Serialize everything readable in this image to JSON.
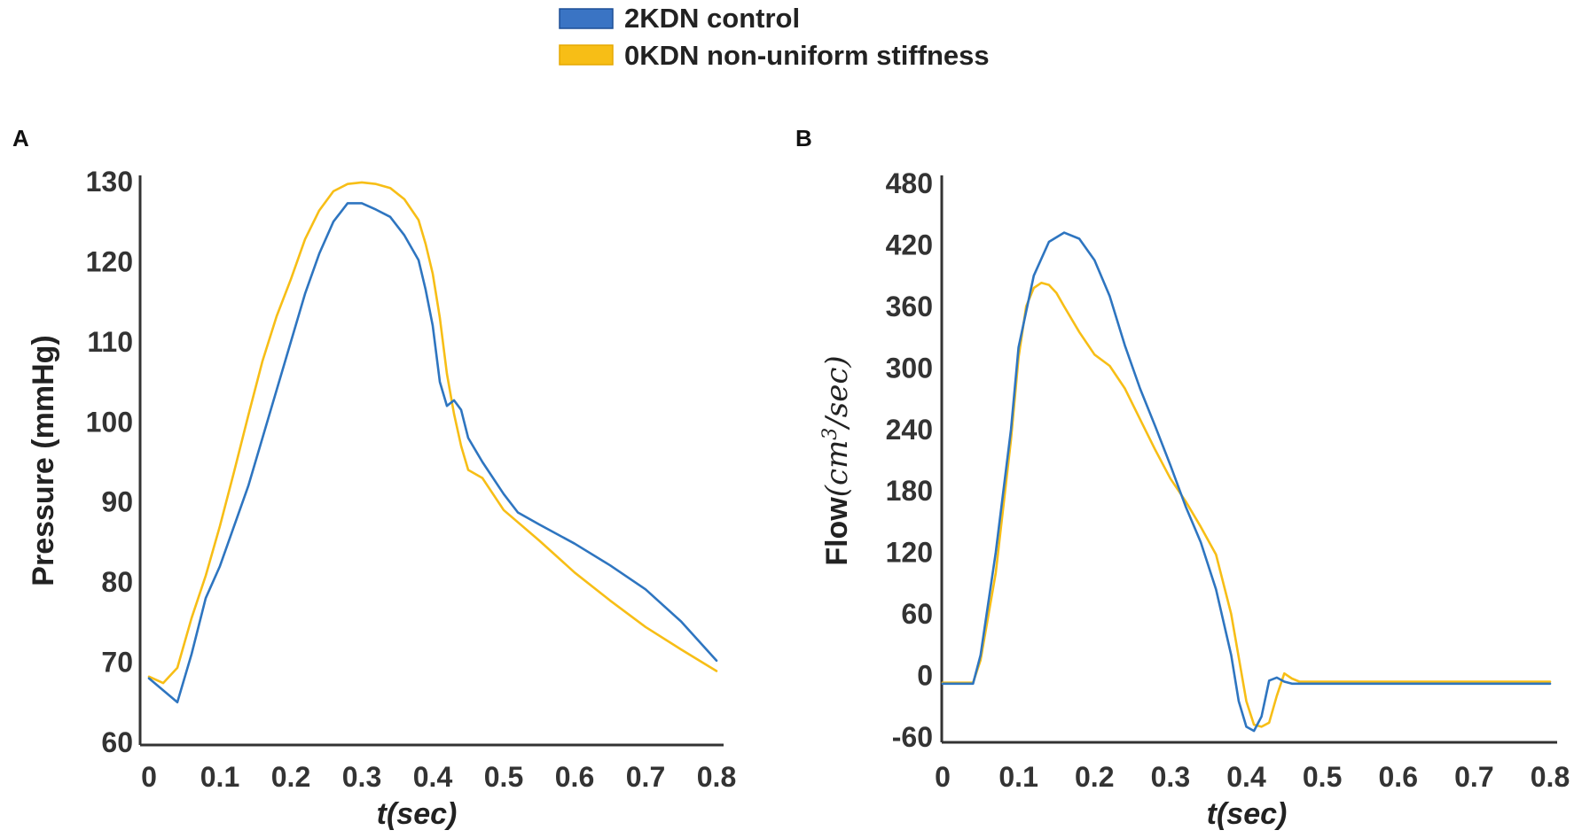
{
  "legend": {
    "items": [
      {
        "label": "2KDN control",
        "color": "#2e75c0"
      },
      {
        "label": "0KDN non-uniform stiffness",
        "color": "#f7be16"
      }
    ]
  },
  "chart_data": [
    {
      "panel": "A",
      "type": "line",
      "xlabel": "t(sec)",
      "ylabel": "Pressure (mmHg)",
      "xlim": [
        0,
        0.8
      ],
      "ylim": [
        60,
        130
      ],
      "xticks": [
        "0",
        "0.1",
        "0.2",
        "0.3",
        "0.4",
        "0.5",
        "0.6",
        "0.7",
        "0.8"
      ],
      "xtick_values": [
        0,
        0.1,
        0.2,
        0.3,
        0.4,
        0.5,
        0.6,
        0.7,
        0.8
      ],
      "yticks": [
        "60",
        "70",
        "80",
        "90",
        "100",
        "110",
        "120",
        "130"
      ],
      "ytick_values": [
        60,
        70,
        80,
        90,
        100,
        110,
        120,
        130
      ],
      "series": [
        {
          "name": "2KDN control",
          "color": "#2e75c0",
          "points": [
            [
              0,
              68
            ],
            [
              0.04,
              65
            ],
            [
              0.06,
              71
            ],
            [
              0.08,
              78
            ],
            [
              0.1,
              82
            ],
            [
              0.12,
              87
            ],
            [
              0.14,
              92
            ],
            [
              0.16,
              98
            ],
            [
              0.18,
              104
            ],
            [
              0.2,
              110
            ],
            [
              0.22,
              116
            ],
            [
              0.24,
              121
            ],
            [
              0.26,
              125
            ],
            [
              0.28,
              127.3
            ],
            [
              0.3,
              127.3
            ],
            [
              0.32,
              126.5
            ],
            [
              0.34,
              125.6
            ],
            [
              0.36,
              123.3
            ],
            [
              0.38,
              120.2
            ],
            [
              0.39,
              116.5
            ],
            [
              0.4,
              112
            ],
            [
              0.41,
              105
            ],
            [
              0.42,
              102
            ],
            [
              0.43,
              102.7
            ],
            [
              0.44,
              101.5
            ],
            [
              0.45,
              98
            ],
            [
              0.47,
              95
            ],
            [
              0.5,
              91
            ],
            [
              0.52,
              88.7
            ],
            [
              0.55,
              87.2
            ],
            [
              0.6,
              84.8
            ],
            [
              0.65,
              82.1
            ],
            [
              0.7,
              79.1
            ],
            [
              0.75,
              75.1
            ],
            [
              0.8,
              70.2
            ]
          ]
        },
        {
          "name": "0KDN non-uniform stiffness",
          "color": "#f7be16",
          "points": [
            [
              0,
              68.2
            ],
            [
              0.02,
              67.4
            ],
            [
              0.04,
              69.3
            ],
            [
              0.06,
              75.5
            ],
            [
              0.08,
              80.8
            ],
            [
              0.1,
              87
            ],
            [
              0.12,
              93.8
            ],
            [
              0.14,
              100.8
            ],
            [
              0.16,
              107.6
            ],
            [
              0.18,
              113.2
            ],
            [
              0.2,
              117.8
            ],
            [
              0.22,
              122.8
            ],
            [
              0.24,
              126.4
            ],
            [
              0.26,
              128.8
            ],
            [
              0.28,
              129.7
            ],
            [
              0.3,
              129.9
            ],
            [
              0.32,
              129.7
            ],
            [
              0.34,
              129.2
            ],
            [
              0.36,
              127.8
            ],
            [
              0.38,
              125.2
            ],
            [
              0.39,
              122.2
            ],
            [
              0.4,
              118.5
            ],
            [
              0.41,
              113
            ],
            [
              0.42,
              106
            ],
            [
              0.43,
              101
            ],
            [
              0.44,
              97
            ],
            [
              0.45,
              94
            ],
            [
              0.47,
              93
            ],
            [
              0.5,
              89
            ],
            [
              0.55,
              85.2
            ],
            [
              0.6,
              81.2
            ],
            [
              0.65,
              77.7
            ],
            [
              0.7,
              74.4
            ],
            [
              0.75,
              71.6
            ],
            [
              0.8,
              68.9
            ]
          ]
        }
      ]
    },
    {
      "panel": "B",
      "type": "line",
      "xlabel": "t(sec)",
      "ylabel_prefix": "Flow",
      "ylabel_math": "(cm",
      "ylabel_sup": "3",
      "ylabel_math_end": "/sec)",
      "xlim": [
        0,
        0.8
      ],
      "ylim": [
        -60,
        480
      ],
      "xticks": [
        "0",
        "0.1",
        "0.2",
        "0.3",
        "0.4",
        "0.5",
        "0.6",
        "0.7",
        "0.8"
      ],
      "xtick_values": [
        0,
        0.1,
        0.2,
        0.3,
        0.4,
        0.5,
        0.6,
        0.7,
        0.8
      ],
      "yticks": [
        "-60",
        "0",
        "60",
        "120",
        "180",
        "240",
        "300",
        "360",
        "420",
        "480"
      ],
      "ytick_values": [
        -60,
        0,
        60,
        120,
        180,
        240,
        300,
        360,
        420,
        480
      ],
      "series": [
        {
          "name": "2KDN control",
          "color": "#2e75c0",
          "points": [
            [
              0,
              -8
            ],
            [
              0.04,
              -8
            ],
            [
              0.05,
              20
            ],
            [
              0.07,
              120
            ],
            [
              0.09,
              240
            ],
            [
              0.1,
              320
            ],
            [
              0.12,
              390
            ],
            [
              0.14,
              423
            ],
            [
              0.16,
              432
            ],
            [
              0.18,
              426
            ],
            [
              0.2,
              405
            ],
            [
              0.22,
              370
            ],
            [
              0.24,
              322
            ],
            [
              0.26,
              280
            ],
            [
              0.28,
              243
            ],
            [
              0.3,
              205
            ],
            [
              0.32,
              165
            ],
            [
              0.34,
              130
            ],
            [
              0.36,
              84
            ],
            [
              0.38,
              20
            ],
            [
              0.39,
              -25
            ],
            [
              0.4,
              -50
            ],
            [
              0.41,
              -54
            ],
            [
              0.42,
              -40
            ],
            [
              0.43,
              -5
            ],
            [
              0.44,
              -2
            ],
            [
              0.45,
              -6
            ],
            [
              0.46,
              -8
            ],
            [
              0.5,
              -8
            ],
            [
              0.6,
              -8
            ],
            [
              0.7,
              -8
            ],
            [
              0.8,
              -8
            ]
          ]
        },
        {
          "name": "0KDN non-uniform stiffness",
          "color": "#f7be16",
          "points": [
            [
              0,
              -7
            ],
            [
              0.04,
              -7
            ],
            [
              0.05,
              15
            ],
            [
              0.07,
              100
            ],
            [
              0.09,
              230
            ],
            [
              0.1,
              310
            ],
            [
              0.11,
              360
            ],
            [
              0.12,
              378
            ],
            [
              0.13,
              383
            ],
            [
              0.14,
              381
            ],
            [
              0.15,
              373
            ],
            [
              0.16,
              360
            ],
            [
              0.18,
              335
            ],
            [
              0.2,
              313
            ],
            [
              0.22,
              302
            ],
            [
              0.24,
              280
            ],
            [
              0.26,
              250
            ],
            [
              0.28,
              220
            ],
            [
              0.3,
              192
            ],
            [
              0.32,
              170
            ],
            [
              0.34,
              145
            ],
            [
              0.36,
              118
            ],
            [
              0.38,
              60
            ],
            [
              0.4,
              -25
            ],
            [
              0.41,
              -48
            ],
            [
              0.42,
              -50
            ],
            [
              0.43,
              -46
            ],
            [
              0.44,
              -20
            ],
            [
              0.45,
              2
            ],
            [
              0.46,
              -3
            ],
            [
              0.47,
              -6
            ],
            [
              0.5,
              -6
            ],
            [
              0.6,
              -6
            ],
            [
              0.7,
              -6
            ],
            [
              0.8,
              -6
            ]
          ]
        }
      ]
    }
  ]
}
